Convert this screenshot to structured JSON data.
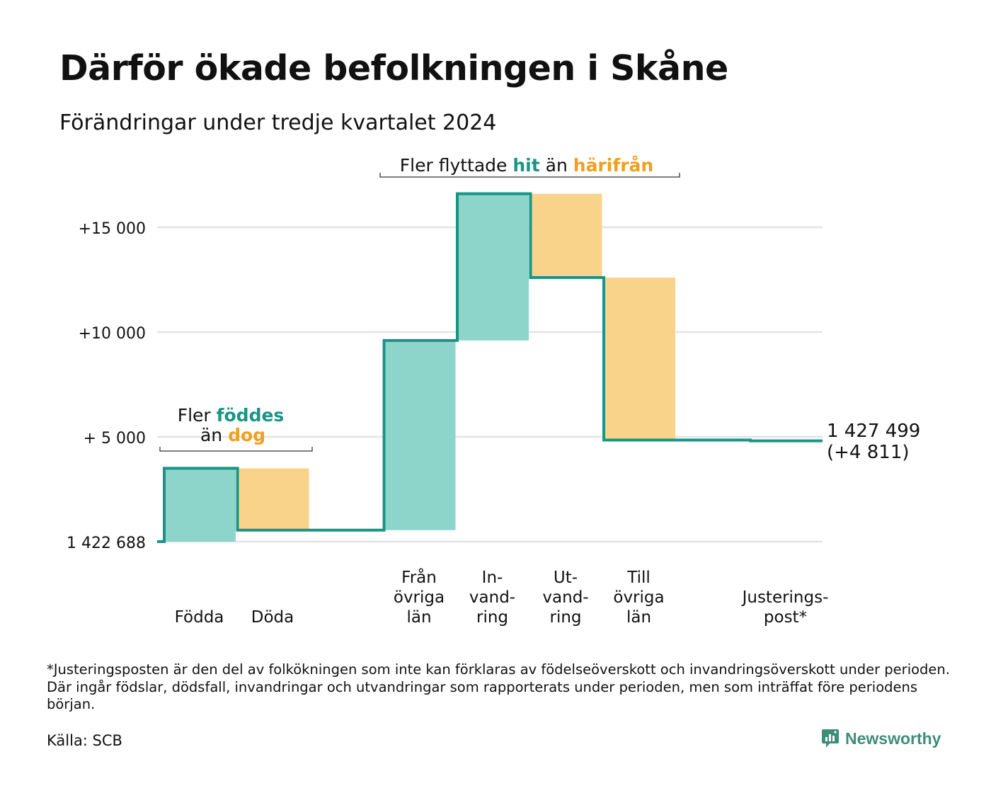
{
  "title": "Därför ökade befolkningen i Skåne",
  "subtitle": "Förändringar under tredje kvartalet 2024",
  "footnote": "*Justeringsposten är den del av folkökningen som inte kan förklaras av födelseöverskott och invandringsöverskott under perioden. Där ingår födslar, dödsfall, invandringar och utvandringar som rapporterats under perioden, men som inträffat före periodens början.",
  "source": "Källa: SCB",
  "brand": "Newsworthy",
  "colors": {
    "increase_fill": "#8dd5cb",
    "decrease_fill": "#fad38b",
    "step_line": "#1a9484",
    "accent_teal": "#1a9484",
    "accent_orange": "#f0a01e",
    "grid": "#e3e3e3"
  },
  "annotations": {
    "births": {
      "line1_plain": "Fler ",
      "line1_bold": "föddes",
      "line2_plain": "än ",
      "line2_bold": "dog"
    },
    "migration": {
      "plain1": "Fler flyttade ",
      "bold1": "hit",
      "plain2": " än ",
      "bold2": "härifrån"
    }
  },
  "chart_data": {
    "type": "waterfall",
    "title": "Därför ökade befolkningen i Skåne",
    "subtitle": "Förändringar under tredje kvartalet 2024",
    "baseline_value": 1422688,
    "baseline_label": "1 422 688",
    "end_value": 1427499,
    "end_label_line1": "1 427 499",
    "end_label_line2": "(+4 811)",
    "y_ticks": [
      {
        "value": 5000,
        "label": "+ 5 000"
      },
      {
        "value": 10000,
        "label": "+10 000"
      },
      {
        "value": 15000,
        "label": "+15 000"
      }
    ],
    "ylim": [
      0,
      17000
    ],
    "grid": true,
    "categories": [
      {
        "lines": [
          "Födda"
        ],
        "change": 3500,
        "kind": "increase"
      },
      {
        "lines": [
          "Döda"
        ],
        "change": -2950,
        "kind": "decrease"
      },
      {
        "lines": [],
        "change": 0,
        "kind": "gap"
      },
      {
        "lines": [
          "Från",
          "övriga",
          "län"
        ],
        "change": 9050,
        "kind": "increase"
      },
      {
        "lines": [
          "In-",
          "vand-",
          "ring"
        ],
        "change": 7000,
        "kind": "increase"
      },
      {
        "lines": [
          "Ut-",
          "vand-",
          "ring"
        ],
        "change": -4000,
        "kind": "decrease"
      },
      {
        "lines": [
          "Till",
          "övriga",
          "län"
        ],
        "change": -7750,
        "kind": "decrease"
      },
      {
        "lines": [],
        "change": 0,
        "kind": "gap"
      },
      {
        "lines": [
          "Justerings-",
          "post*"
        ],
        "change": -39,
        "kind": "adjustment"
      }
    ]
  }
}
